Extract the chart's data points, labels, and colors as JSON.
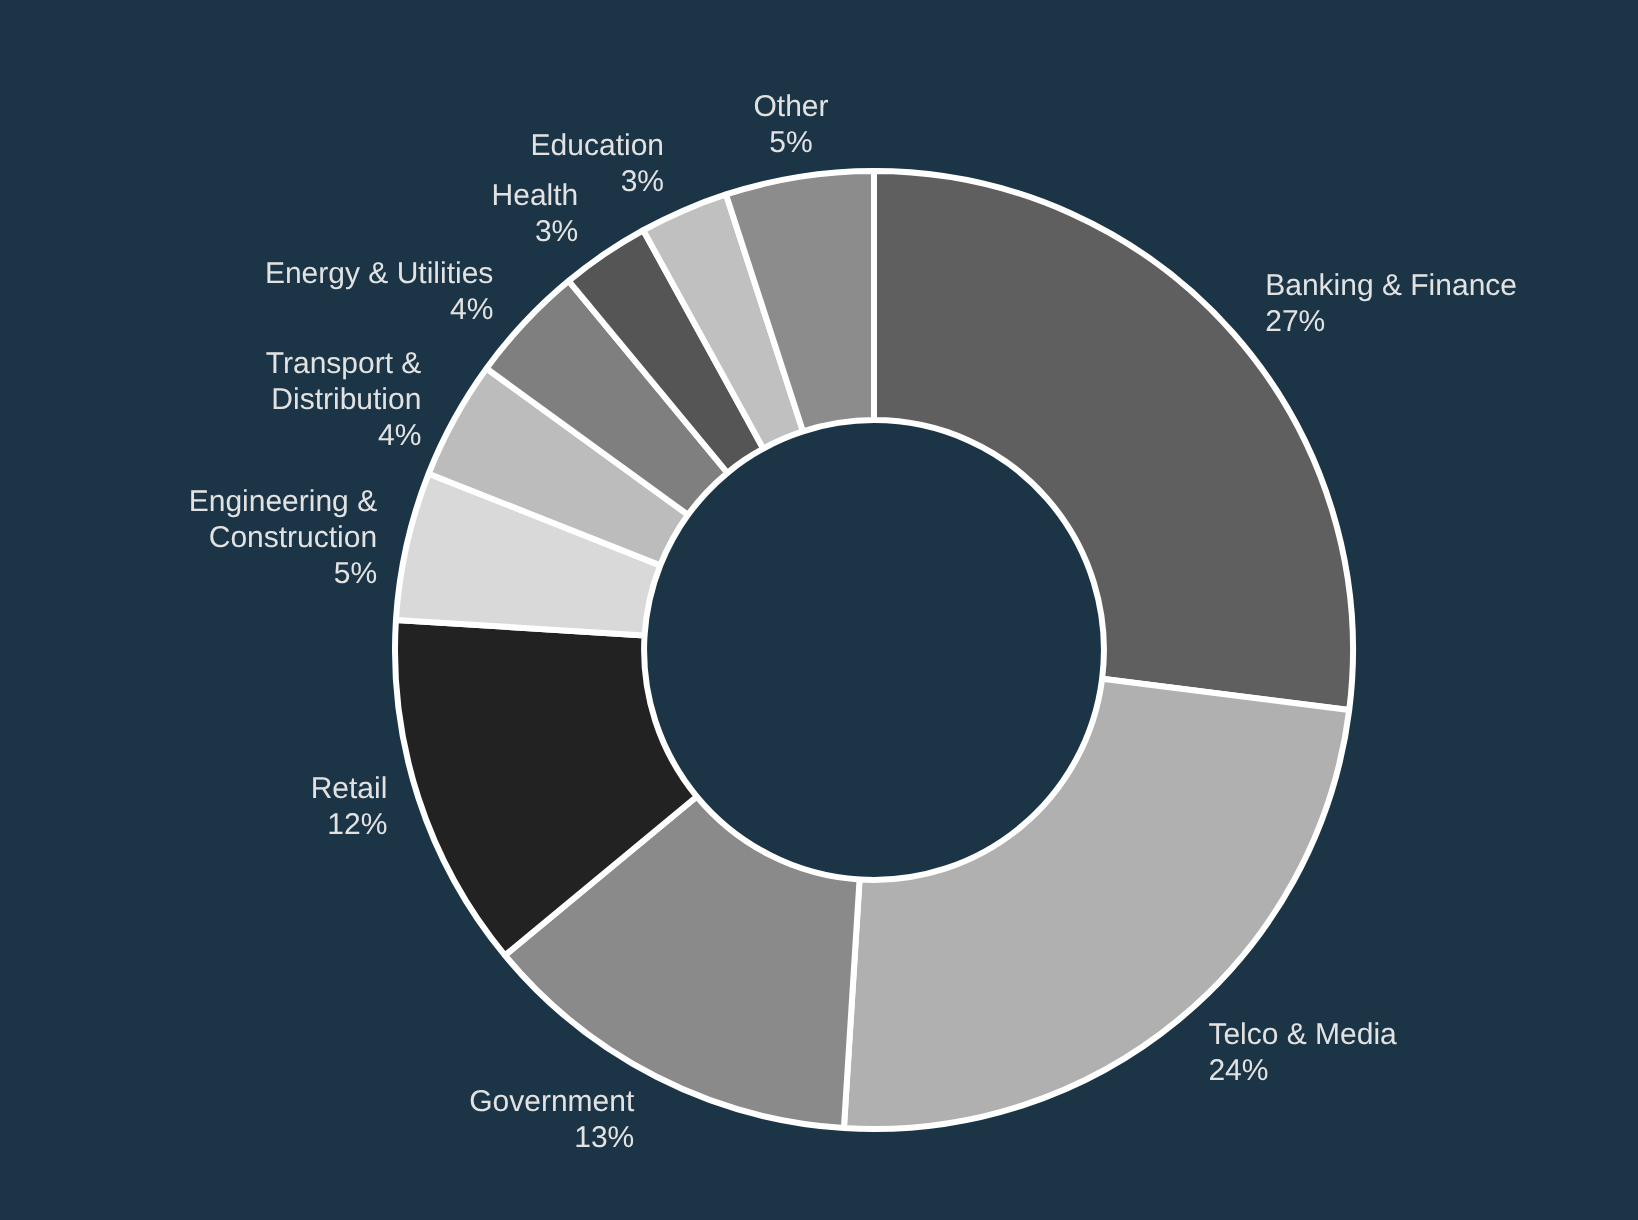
{
  "chart_data": {
    "type": "donut",
    "categories": [
      "Banking & Finance",
      "Telco & Media",
      "Government",
      "Retail",
      "Engineering & Construction",
      "Transport & Distribution",
      "Energy & Utilities",
      "Health",
      "Education",
      "Other"
    ],
    "values": [
      27,
      24,
      13,
      12,
      5,
      4,
      4,
      3,
      3,
      5
    ],
    "colors": [
      "#5f5f5f",
      "#b0b0b0",
      "#8a8a8a",
      "#222222",
      "#d9d9d9",
      "#bcbcbc",
      "#7f7f7f",
      "#555555",
      "#c0c0c0",
      "#8c8c8c"
    ],
    "value_labels": [
      "27%",
      "24%",
      "13%",
      "12%",
      "5%",
      "4%",
      "4%",
      "3%",
      "3%",
      "5%"
    ],
    "legend": false
  }
}
